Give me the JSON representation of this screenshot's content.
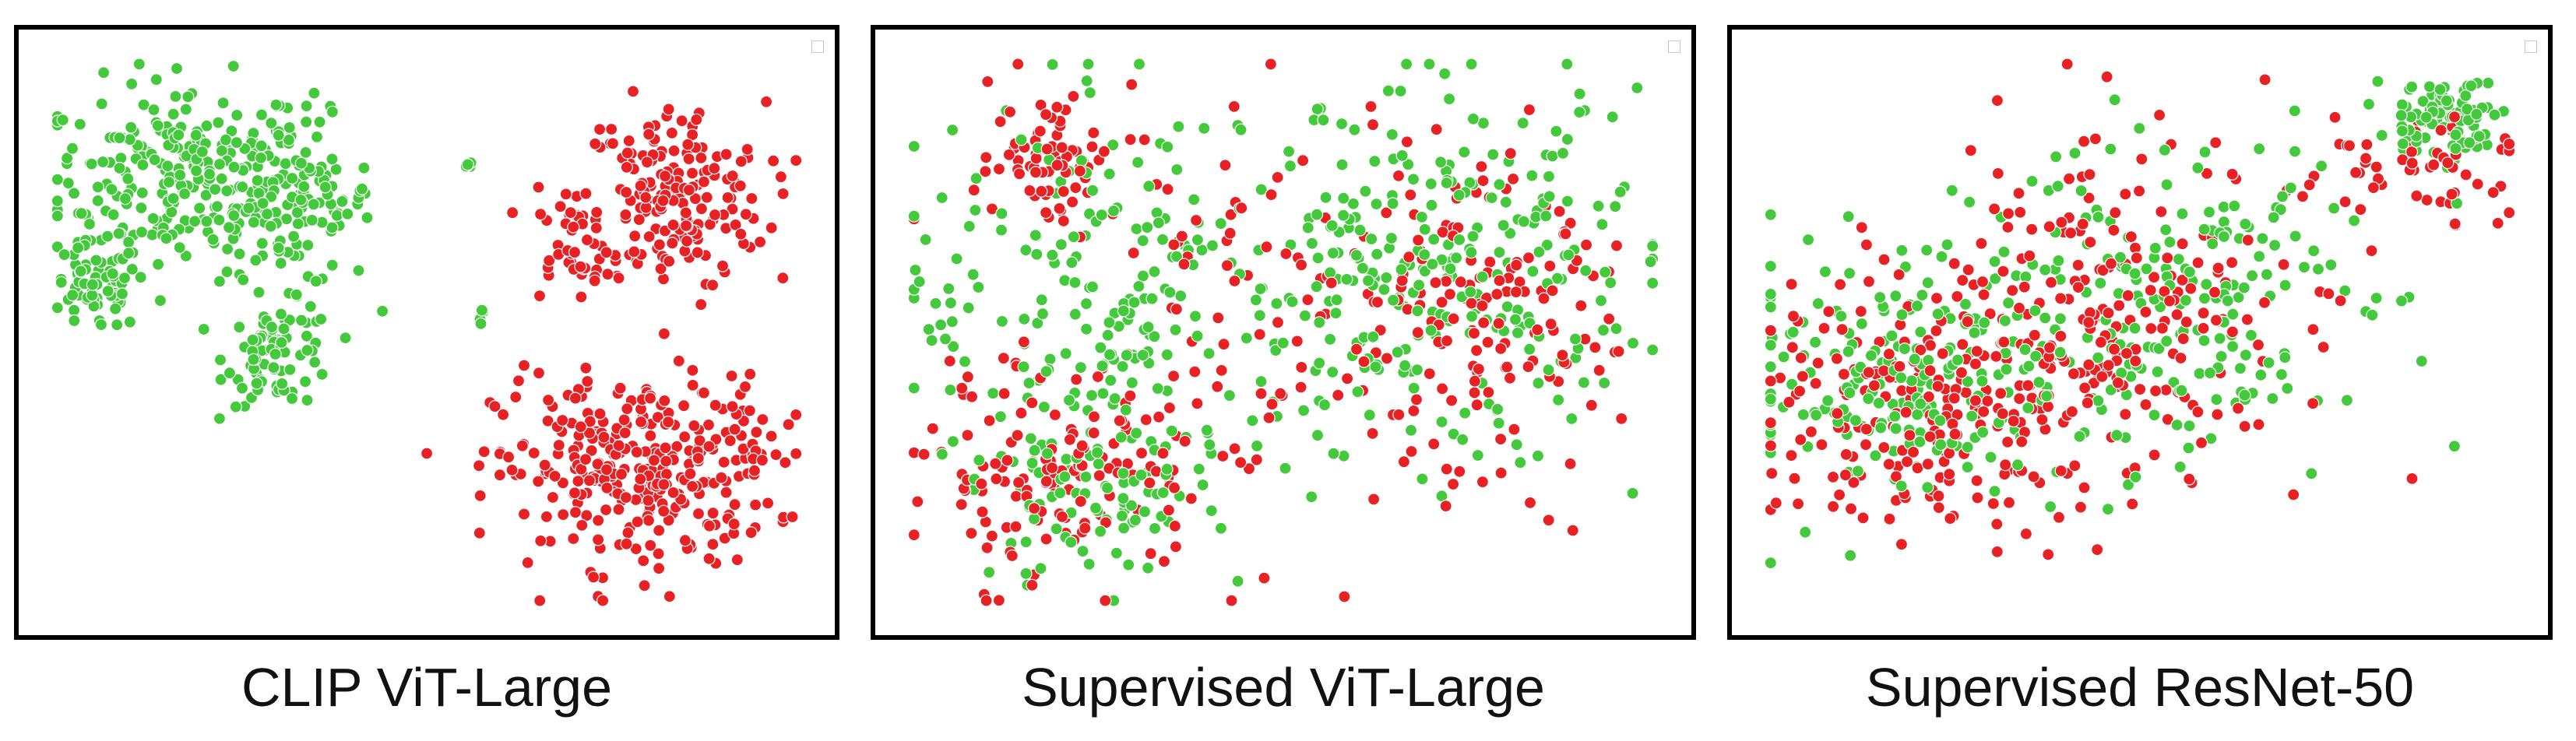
{
  "colors": {
    "class_a": "#e82124",
    "class_b": "#44c93c",
    "point_edge": "#ffffff",
    "frame": "#000000"
  },
  "panels": [
    {
      "caption": "CLIP ViT-Large"
    },
    {
      "caption": "Supervised ViT-Large"
    },
    {
      "caption": "Supervised ResNet-50"
    }
  ],
  "chart_data": [
    {
      "type": "scatter",
      "title": "CLIP ViT-Large",
      "xlabel": "",
      "ylabel": "",
      "xlim": [
        0,
        1
      ],
      "ylim": [
        0,
        1
      ],
      "grid": false,
      "axes_visible": false,
      "legend": "top-right (empty marker box)",
      "series": [
        {
          "color": "#44c93c",
          "n": 520,
          "clusters": [
            {
              "cx": 0.18,
              "cy": 0.78,
              "sx": 0.085,
              "sy": 0.085,
              "w": 0.45
            },
            {
              "cx": 0.33,
              "cy": 0.73,
              "sx": 0.05,
              "sy": 0.075,
              "w": 0.22
            },
            {
              "cx": 0.07,
              "cy": 0.58,
              "sx": 0.03,
              "sy": 0.04,
              "w": 0.12
            },
            {
              "cx": 0.31,
              "cy": 0.46,
              "sx": 0.035,
              "sy": 0.045,
              "w": 0.15
            },
            {
              "cx": 0.55,
              "cy": 0.8,
              "sx": 0.005,
              "sy": 0.006,
              "w": 0.01
            },
            {
              "cx": 0.57,
              "cy": 0.53,
              "sx": 0.006,
              "sy": 0.006,
              "w": 0.01
            }
          ]
        },
        {
          "color": "#e82124",
          "n": 560,
          "clusters": [
            {
              "cx": 0.82,
              "cy": 0.74,
              "sx": 0.06,
              "sy": 0.085,
              "w": 0.35
            },
            {
              "cx": 0.69,
              "cy": 0.66,
              "sx": 0.03,
              "sy": 0.05,
              "w": 0.07
            },
            {
              "cx": 0.77,
              "cy": 0.25,
              "sx": 0.09,
              "sy": 0.085,
              "w": 0.55
            },
            {
              "cx": 0.93,
              "cy": 0.3,
              "sx": 0.02,
              "sy": 0.04,
              "w": 0.03
            }
          ]
        }
      ]
    },
    {
      "type": "scatter",
      "title": "Supervised ViT-Large",
      "xlabel": "",
      "ylabel": "",
      "xlim": [
        0,
        1
      ],
      "ylim": [
        0,
        1
      ],
      "grid": false,
      "axes_visible": false,
      "legend": "top-right (empty marker box)",
      "series": [
        {
          "color": "#e82124",
          "n": 440,
          "clusters": [
            {
              "cx": 0.22,
              "cy": 0.25,
              "sx": 0.09,
              "sy": 0.09,
              "w": 0.3
            },
            {
              "cx": 0.75,
              "cy": 0.5,
              "sx": 0.09,
              "sy": 0.13,
              "w": 0.3
            },
            {
              "cx": 0.5,
              "cy": 0.55,
              "sx": 0.2,
              "sy": 0.2,
              "w": 0.25
            },
            {
              "cx": 0.2,
              "cy": 0.82,
              "sx": 0.04,
              "sy": 0.06,
              "w": 0.15
            }
          ]
        },
        {
          "color": "#44c93c",
          "n": 560,
          "clusters": [
            {
              "cx": 0.27,
              "cy": 0.55,
              "sx": 0.13,
              "sy": 0.18,
              "w": 0.35
            },
            {
              "cx": 0.7,
              "cy": 0.6,
              "sx": 0.14,
              "sy": 0.16,
              "w": 0.5
            },
            {
              "cx": 0.25,
              "cy": 0.2,
              "sx": 0.08,
              "sy": 0.07,
              "w": 0.15
            }
          ]
        }
      ]
    },
    {
      "type": "scatter",
      "title": "Supervised ResNet-50",
      "xlabel": "",
      "ylabel": "",
      "xlim": [
        0,
        1
      ],
      "ylim": [
        0,
        1
      ],
      "grid": false,
      "axes_visible": false,
      "legend": "top-right (empty marker box)",
      "series": [
        {
          "color": "#e82124",
          "n": 480,
          "clusters": [
            {
              "cx": 0.22,
              "cy": 0.38,
              "sx": 0.11,
              "sy": 0.12,
              "w": 0.45
            },
            {
              "cx": 0.5,
              "cy": 0.55,
              "sx": 0.13,
              "sy": 0.15,
              "w": 0.42
            },
            {
              "cx": 0.85,
              "cy": 0.8,
              "sx": 0.06,
              "sy": 0.05,
              "w": 0.13
            }
          ]
        },
        {
          "color": "#44c93c",
          "n": 500,
          "clusters": [
            {
              "cx": 0.2,
              "cy": 0.4,
              "sx": 0.11,
              "sy": 0.11,
              "w": 0.4
            },
            {
              "cx": 0.55,
              "cy": 0.55,
              "sx": 0.13,
              "sy": 0.14,
              "w": 0.4
            },
            {
              "cx": 0.9,
              "cy": 0.88,
              "sx": 0.04,
              "sy": 0.035,
              "w": 0.2
            }
          ]
        }
      ]
    }
  ]
}
